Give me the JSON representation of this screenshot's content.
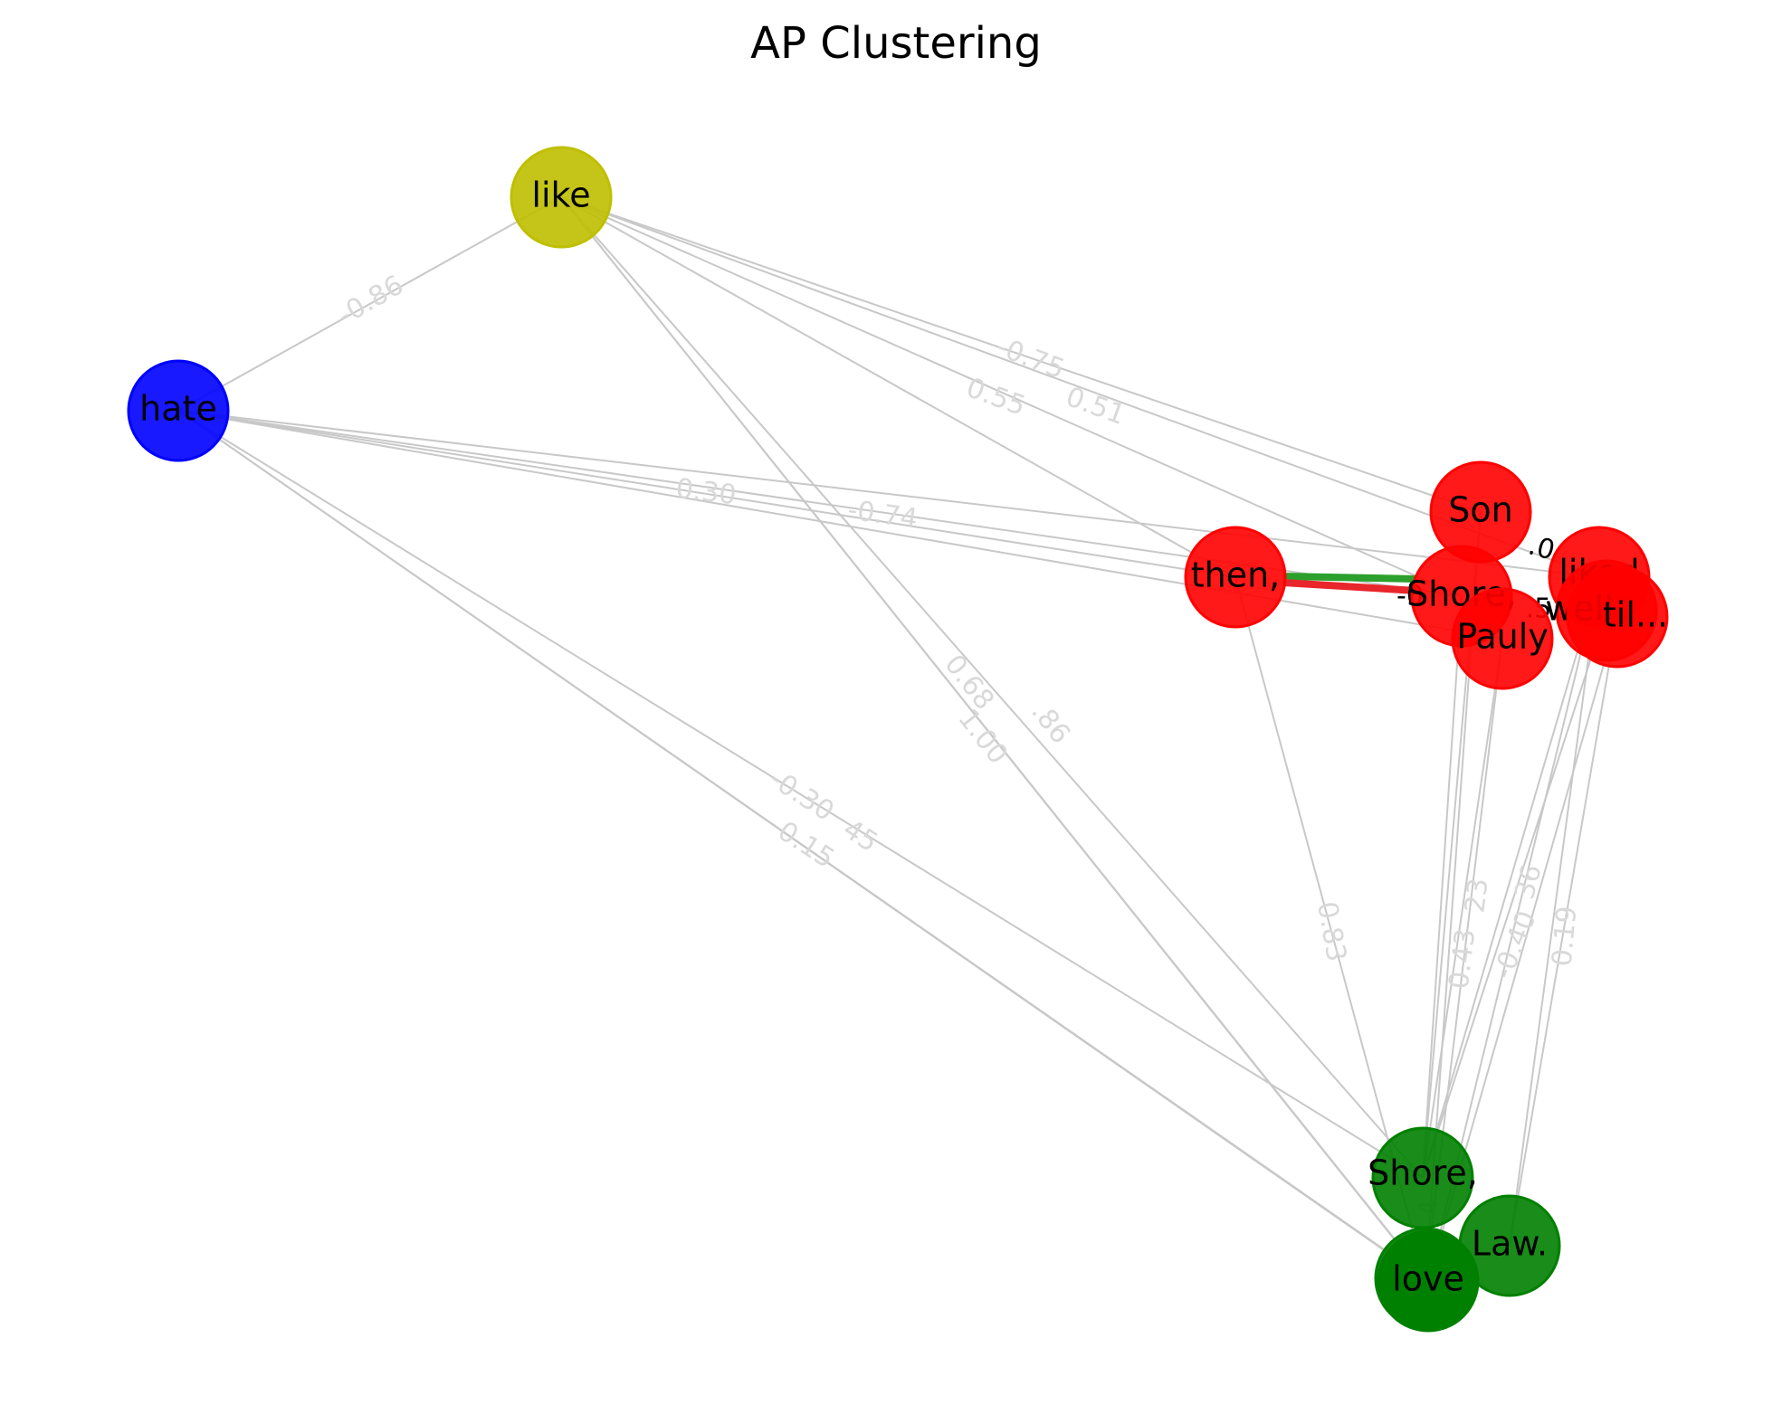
{
  "title": "AP Clustering",
  "colors": {
    "red_cluster": "#ff0000",
    "green_cluster": "#008000",
    "blue_cluster": "#0000ff",
    "yellow_cluster": "#bfbf00",
    "edge": "#c8c8c8",
    "edge_label": "#d9d9d9",
    "highlight_green": "#2ca02c",
    "highlight_red": "#e8262b"
  },
  "nodes": [
    {
      "id": "like",
      "label": "like",
      "cluster": "yellow"
    },
    {
      "id": "hate",
      "label": "hate",
      "cluster": "blue"
    },
    {
      "id": "son",
      "label": "Son",
      "cluster": "red"
    },
    {
      "id": "then",
      "label": "then,",
      "cluster": "red"
    },
    {
      "id": "shore_r",
      "label": "Shore,",
      "cluster": "red"
    },
    {
      "id": "pauly_r",
      "label": "Pauly",
      "cluster": "red"
    },
    {
      "id": "liked",
      "label": "liked",
      "cluster": "red"
    },
    {
      "id": "well",
      "label": "well",
      "cluster": "red"
    },
    {
      "id": "til",
      "label": "til...",
      "cluster": "red"
    },
    {
      "id": "shore_g",
      "label": "Shore,",
      "cluster": "green"
    },
    {
      "id": "law",
      "label": "Law.",
      "cluster": "green"
    },
    {
      "id": "pauly_g",
      "label": "Pauly",
      "cluster": "green"
    },
    {
      "id": "love",
      "label": "love",
      "cluster": "green"
    }
  ],
  "edge_labels": [
    {
      "text": "-0.86"
    },
    {
      "text": "-0.75"
    },
    {
      "text": "0.55"
    },
    {
      "text": "0.51"
    },
    {
      "text": "0.30"
    },
    {
      "text": "-0.74"
    },
    {
      "text": "0.68"
    },
    {
      "text": ".86"
    },
    {
      "text": "1.00"
    },
    {
      "text": "-0.30"
    },
    {
      "text": "45"
    },
    {
      "text": "0.15"
    },
    {
      "text": "0.83"
    },
    {
      "text": "0.43"
    },
    {
      "text": "23"
    },
    {
      "text": "36"
    },
    {
      "text": "-0.40"
    },
    {
      "text": "0.19"
    },
    {
      "text": "4"
    }
  ],
  "dark_labels": [
    {
      "text": ".0"
    },
    {
      "text": "-0"
    },
    {
      "text": ".5"
    }
  ]
}
